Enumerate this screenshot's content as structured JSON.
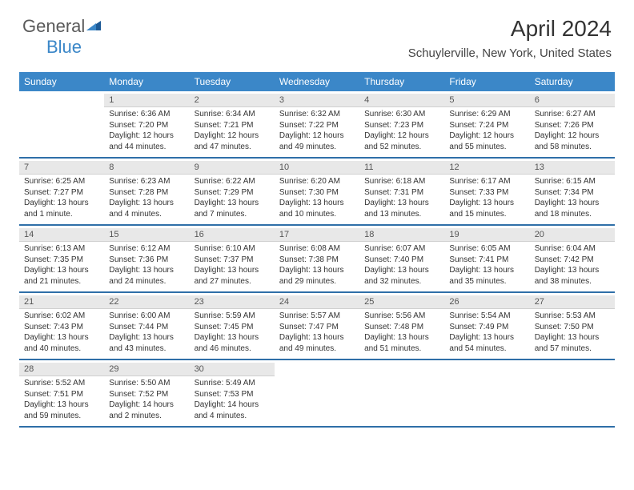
{
  "brand": {
    "part1": "General",
    "part2": "Blue"
  },
  "title": "April 2024",
  "location": "Schuylerville, New York, United States",
  "colors": {
    "header_bg": "#3b87c8",
    "header_text": "#ffffff",
    "daynum_bg": "#e8e8e8",
    "week_sep": "#2f6fa8",
    "text": "#333333"
  },
  "weekdays": [
    "Sunday",
    "Monday",
    "Tuesday",
    "Wednesday",
    "Thursday",
    "Friday",
    "Saturday"
  ],
  "weeks": [
    [
      {
        "n": "",
        "sun": "",
        "set": "",
        "day": ""
      },
      {
        "n": "1",
        "sun": "Sunrise: 6:36 AM",
        "set": "Sunset: 7:20 PM",
        "day": "Daylight: 12 hours and 44 minutes."
      },
      {
        "n": "2",
        "sun": "Sunrise: 6:34 AM",
        "set": "Sunset: 7:21 PM",
        "day": "Daylight: 12 hours and 47 minutes."
      },
      {
        "n": "3",
        "sun": "Sunrise: 6:32 AM",
        "set": "Sunset: 7:22 PM",
        "day": "Daylight: 12 hours and 49 minutes."
      },
      {
        "n": "4",
        "sun": "Sunrise: 6:30 AM",
        "set": "Sunset: 7:23 PM",
        "day": "Daylight: 12 hours and 52 minutes."
      },
      {
        "n": "5",
        "sun": "Sunrise: 6:29 AM",
        "set": "Sunset: 7:24 PM",
        "day": "Daylight: 12 hours and 55 minutes."
      },
      {
        "n": "6",
        "sun": "Sunrise: 6:27 AM",
        "set": "Sunset: 7:26 PM",
        "day": "Daylight: 12 hours and 58 minutes."
      }
    ],
    [
      {
        "n": "7",
        "sun": "Sunrise: 6:25 AM",
        "set": "Sunset: 7:27 PM",
        "day": "Daylight: 13 hours and 1 minute."
      },
      {
        "n": "8",
        "sun": "Sunrise: 6:23 AM",
        "set": "Sunset: 7:28 PM",
        "day": "Daylight: 13 hours and 4 minutes."
      },
      {
        "n": "9",
        "sun": "Sunrise: 6:22 AM",
        "set": "Sunset: 7:29 PM",
        "day": "Daylight: 13 hours and 7 minutes."
      },
      {
        "n": "10",
        "sun": "Sunrise: 6:20 AM",
        "set": "Sunset: 7:30 PM",
        "day": "Daylight: 13 hours and 10 minutes."
      },
      {
        "n": "11",
        "sun": "Sunrise: 6:18 AM",
        "set": "Sunset: 7:31 PM",
        "day": "Daylight: 13 hours and 13 minutes."
      },
      {
        "n": "12",
        "sun": "Sunrise: 6:17 AM",
        "set": "Sunset: 7:33 PM",
        "day": "Daylight: 13 hours and 15 minutes."
      },
      {
        "n": "13",
        "sun": "Sunrise: 6:15 AM",
        "set": "Sunset: 7:34 PM",
        "day": "Daylight: 13 hours and 18 minutes."
      }
    ],
    [
      {
        "n": "14",
        "sun": "Sunrise: 6:13 AM",
        "set": "Sunset: 7:35 PM",
        "day": "Daylight: 13 hours and 21 minutes."
      },
      {
        "n": "15",
        "sun": "Sunrise: 6:12 AM",
        "set": "Sunset: 7:36 PM",
        "day": "Daylight: 13 hours and 24 minutes."
      },
      {
        "n": "16",
        "sun": "Sunrise: 6:10 AM",
        "set": "Sunset: 7:37 PM",
        "day": "Daylight: 13 hours and 27 minutes."
      },
      {
        "n": "17",
        "sun": "Sunrise: 6:08 AM",
        "set": "Sunset: 7:38 PM",
        "day": "Daylight: 13 hours and 29 minutes."
      },
      {
        "n": "18",
        "sun": "Sunrise: 6:07 AM",
        "set": "Sunset: 7:40 PM",
        "day": "Daylight: 13 hours and 32 minutes."
      },
      {
        "n": "19",
        "sun": "Sunrise: 6:05 AM",
        "set": "Sunset: 7:41 PM",
        "day": "Daylight: 13 hours and 35 minutes."
      },
      {
        "n": "20",
        "sun": "Sunrise: 6:04 AM",
        "set": "Sunset: 7:42 PM",
        "day": "Daylight: 13 hours and 38 minutes."
      }
    ],
    [
      {
        "n": "21",
        "sun": "Sunrise: 6:02 AM",
        "set": "Sunset: 7:43 PM",
        "day": "Daylight: 13 hours and 40 minutes."
      },
      {
        "n": "22",
        "sun": "Sunrise: 6:00 AM",
        "set": "Sunset: 7:44 PM",
        "day": "Daylight: 13 hours and 43 minutes."
      },
      {
        "n": "23",
        "sun": "Sunrise: 5:59 AM",
        "set": "Sunset: 7:45 PM",
        "day": "Daylight: 13 hours and 46 minutes."
      },
      {
        "n": "24",
        "sun": "Sunrise: 5:57 AM",
        "set": "Sunset: 7:47 PM",
        "day": "Daylight: 13 hours and 49 minutes."
      },
      {
        "n": "25",
        "sun": "Sunrise: 5:56 AM",
        "set": "Sunset: 7:48 PM",
        "day": "Daylight: 13 hours and 51 minutes."
      },
      {
        "n": "26",
        "sun": "Sunrise: 5:54 AM",
        "set": "Sunset: 7:49 PM",
        "day": "Daylight: 13 hours and 54 minutes."
      },
      {
        "n": "27",
        "sun": "Sunrise: 5:53 AM",
        "set": "Sunset: 7:50 PM",
        "day": "Daylight: 13 hours and 57 minutes."
      }
    ],
    [
      {
        "n": "28",
        "sun": "Sunrise: 5:52 AM",
        "set": "Sunset: 7:51 PM",
        "day": "Daylight: 13 hours and 59 minutes."
      },
      {
        "n": "29",
        "sun": "Sunrise: 5:50 AM",
        "set": "Sunset: 7:52 PM",
        "day": "Daylight: 14 hours and 2 minutes."
      },
      {
        "n": "30",
        "sun": "Sunrise: 5:49 AM",
        "set": "Sunset: 7:53 PM",
        "day": "Daylight: 14 hours and 4 minutes."
      },
      {
        "n": "",
        "sun": "",
        "set": "",
        "day": ""
      },
      {
        "n": "",
        "sun": "",
        "set": "",
        "day": ""
      },
      {
        "n": "",
        "sun": "",
        "set": "",
        "day": ""
      },
      {
        "n": "",
        "sun": "",
        "set": "",
        "day": ""
      }
    ]
  ]
}
